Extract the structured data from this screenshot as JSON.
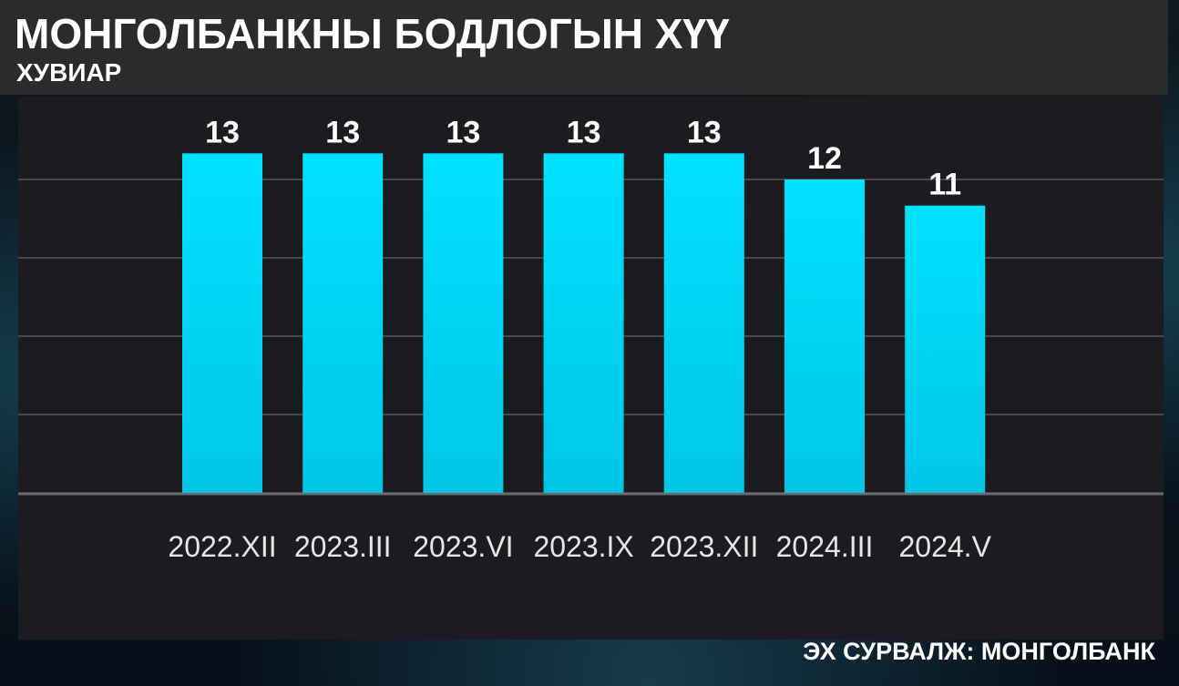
{
  "header": {
    "title": "МОНГОЛБАНКНЫ БОДЛОГЫН ХҮҮ",
    "subtitle": "ХУВИАР"
  },
  "footer": {
    "source": "ЭХ СУРВАЛЖ: МОНГОЛБАНК"
  },
  "colors": {
    "bar": "#00e2ff",
    "bar_bottom": "#00c6e6",
    "panel": "#1c1c20",
    "header": "#2a2b2d",
    "grid": "#55575c",
    "text": "#ffffff",
    "axis_label": "#e6e6e6"
  },
  "chart_data": {
    "type": "bar",
    "title": "МОНГОЛБАНКНЫ БОДЛОГЫН ХҮҮ",
    "subtitle": "ХУВИАР",
    "categories": [
      "2022.XII",
      "2023.III",
      "2023.VI",
      "2023.IX",
      "2023.XII",
      "2024.III",
      "2024.V"
    ],
    "values": [
      13,
      13,
      13,
      13,
      13,
      12,
      11
    ],
    "data_labels": [
      "13",
      "13",
      "13",
      "13",
      "13",
      "12",
      "11"
    ],
    "xlabel": "",
    "ylabel": "",
    "ylim": [
      0,
      15
    ],
    "grid": true,
    "legend": "none"
  }
}
